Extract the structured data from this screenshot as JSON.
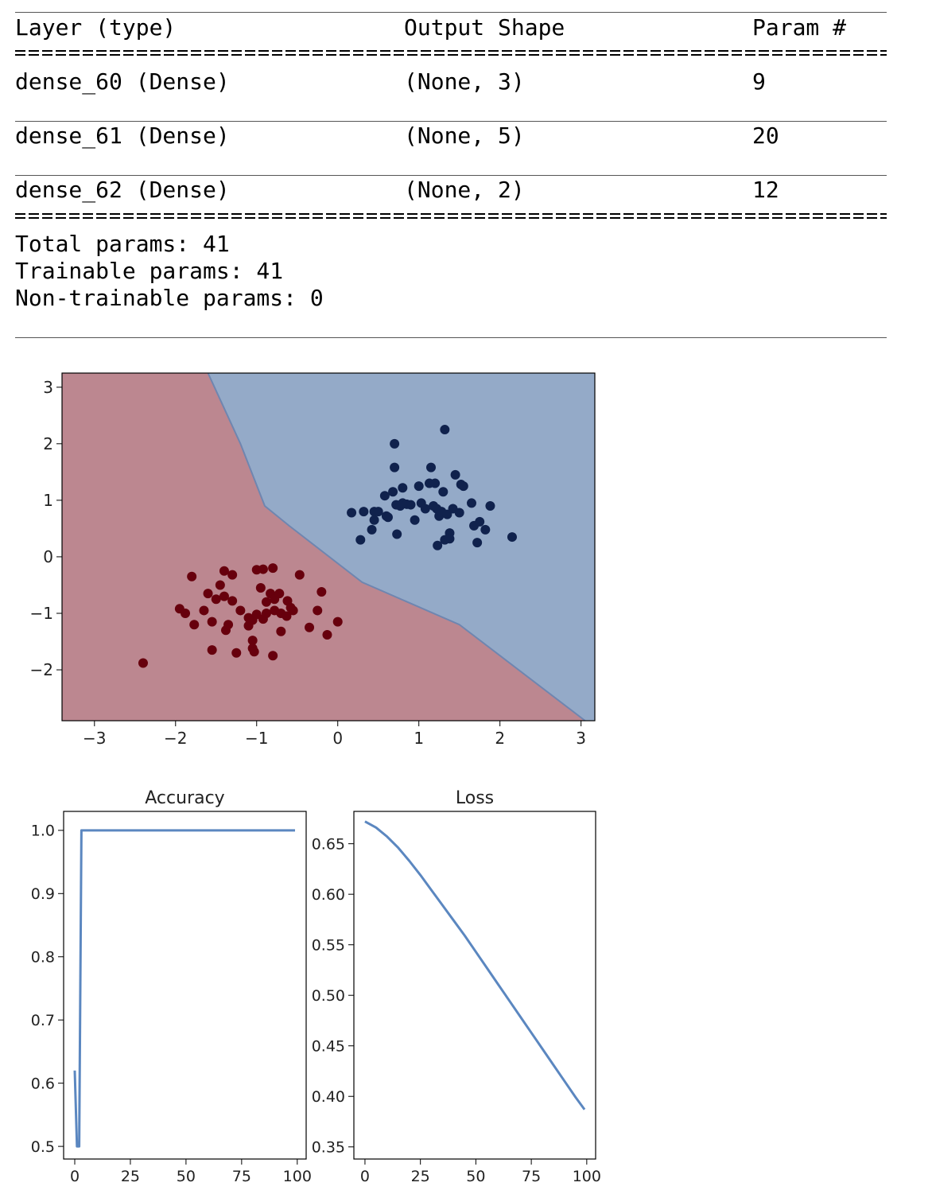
{
  "summary": {
    "headers": [
      "Layer (type)",
      "Output Shape",
      "Param #"
    ],
    "rows": [
      [
        "dense_60 (Dense)",
        "(None, 3)",
        "9"
      ],
      [
        "dense_61 (Dense)",
        "(None, 5)",
        "20"
      ],
      [
        "dense_62 (Dense)",
        "(None, 2)",
        "12"
      ]
    ],
    "total": "Total params: 41",
    "trainable": "Trainable params: 41",
    "non_trainable": "Non-trainable params: 0"
  },
  "colors": {
    "region_red": "#bc8790",
    "region_blue": "#94aac8",
    "points_red": "#67000d",
    "points_blue": "#10224d",
    "line": "#5b87c0"
  },
  "chart_data": [
    {
      "type": "scatter",
      "title": "",
      "xlim": [
        -3.4,
        3.17
      ],
      "ylim": [
        -2.9,
        3.25
      ],
      "xticks": [
        "−3",
        "−2",
        "−1",
        "0",
        "1",
        "2",
        "3"
      ],
      "xtick_values": [
        -3,
        -2,
        -1,
        0,
        1,
        2,
        3
      ],
      "yticks": [
        "3",
        "2",
        "1",
        "0",
        "−1",
        "−2"
      ],
      "ytick_values": [
        3,
        2,
        1,
        0,
        -1,
        -2
      ],
      "decision_boundary": [
        [
          -1.6,
          3.25
        ],
        [
          -1.2,
          2.0
        ],
        [
          -0.9,
          0.9
        ],
        [
          -0.6,
          0.55
        ],
        [
          0.3,
          -0.45
        ],
        [
          1.5,
          -1.2
        ],
        [
          3.05,
          -2.9
        ]
      ],
      "series": [
        {
          "class": 0,
          "points": [
            [
              -2.4,
              -1.88
            ],
            [
              -1.8,
              -0.35
            ],
            [
              -1.95,
              -0.92
            ],
            [
              -1.88,
              -1.0
            ],
            [
              -1.77,
              -1.2
            ],
            [
              -1.6,
              -0.65
            ],
            [
              -1.55,
              -1.15
            ],
            [
              -1.5,
              -0.75
            ],
            [
              -1.45,
              -0.5
            ],
            [
              -1.4,
              -0.7
            ],
            [
              -1.38,
              -1.3
            ],
            [
              -1.35,
              -1.2
            ],
            [
              -1.4,
              -0.25
            ],
            [
              -1.3,
              -0.78
            ],
            [
              -1.3,
              -0.32
            ],
            [
              -1.55,
              -1.65
            ],
            [
              -1.25,
              -1.7
            ],
            [
              -1.1,
              -1.22
            ],
            [
              -1.1,
              -1.08
            ],
            [
              -1.05,
              -1.12
            ],
            [
              -1.0,
              -1.02
            ],
            [
              -1.05,
              -1.48
            ],
            [
              -1.05,
              -1.62
            ],
            [
              -1.03,
              -1.68
            ],
            [
              -1.0,
              -0.23
            ],
            [
              -0.92,
              -0.22
            ],
            [
              -0.95,
              -0.55
            ],
            [
              -0.92,
              -1.1
            ],
            [
              -0.88,
              -0.8
            ],
            [
              -0.83,
              -0.65
            ],
            [
              -0.8,
              -0.2
            ],
            [
              -0.78,
              -0.75
            ],
            [
              -0.78,
              -0.95
            ],
            [
              -0.8,
              -1.75
            ],
            [
              -0.7,
              -1.0
            ],
            [
              -0.72,
              -0.65
            ],
            [
              -0.7,
              -1.32
            ],
            [
              -0.63,
              -1.05
            ],
            [
              -0.62,
              -0.78
            ],
            [
              -0.55,
              -0.95
            ],
            [
              -0.58,
              -0.9
            ],
            [
              -0.47,
              -0.32
            ],
            [
              -0.35,
              -1.25
            ],
            [
              -0.25,
              -0.95
            ],
            [
              -0.2,
              -0.62
            ],
            [
              -0.13,
              -1.38
            ],
            [
              0.0,
              -1.15
            ],
            [
              -0.88,
              -1.0
            ],
            [
              -1.2,
              -0.95
            ],
            [
              -1.65,
              -0.95
            ]
          ]
        },
        {
          "class": 1,
          "points": [
            [
              0.17,
              0.78
            ],
            [
              0.28,
              0.3
            ],
            [
              0.32,
              0.8
            ],
            [
              0.42,
              0.48
            ],
            [
              0.45,
              0.65
            ],
            [
              0.45,
              0.8
            ],
            [
              0.5,
              0.8
            ],
            [
              0.58,
              1.08
            ],
            [
              0.6,
              0.72
            ],
            [
              0.62,
              0.7
            ],
            [
              0.68,
              1.15
            ],
            [
              0.7,
              1.58
            ],
            [
              0.7,
              2.0
            ],
            [
              0.72,
              0.92
            ],
            [
              0.73,
              0.4
            ],
            [
              0.77,
              0.9
            ],
            [
              0.8,
              0.95
            ],
            [
              0.8,
              1.22
            ],
            [
              0.85,
              0.93
            ],
            [
              0.9,
              0.92
            ],
            [
              0.95,
              0.65
            ],
            [
              1.0,
              1.25
            ],
            [
              1.03,
              0.95
            ],
            [
              1.08,
              0.85
            ],
            [
              1.13,
              1.3
            ],
            [
              1.15,
              1.58
            ],
            [
              1.18,
              0.9
            ],
            [
              1.2,
              1.3
            ],
            [
              1.22,
              0.85
            ],
            [
              1.23,
              0.2
            ],
            [
              1.25,
              0.72
            ],
            [
              1.28,
              0.8
            ],
            [
              1.3,
              1.15
            ],
            [
              1.32,
              0.3
            ],
            [
              1.32,
              2.25
            ],
            [
              1.35,
              0.75
            ],
            [
              1.38,
              0.42
            ],
            [
              1.38,
              0.32
            ],
            [
              1.42,
              0.85
            ],
            [
              1.45,
              1.45
            ],
            [
              1.5,
              0.78
            ],
            [
              1.52,
              1.28
            ],
            [
              1.55,
              1.25
            ],
            [
              1.65,
              0.95
            ],
            [
              1.68,
              0.55
            ],
            [
              1.72,
              0.25
            ],
            [
              1.75,
              0.62
            ],
            [
              1.82,
              0.48
            ],
            [
              1.88,
              0.9
            ],
            [
              2.15,
              0.35
            ]
          ]
        }
      ]
    },
    {
      "type": "line",
      "title": "Accuracy",
      "xlim": [
        -5,
        104
      ],
      "ylim": [
        0.48,
        1.03
      ],
      "xticks": [
        "0",
        "25",
        "50",
        "75",
        "100"
      ],
      "xtick_values": [
        0,
        25,
        50,
        75,
        100
      ],
      "yticks": [
        "1.0",
        "0.9",
        "0.8",
        "0.7",
        "0.6",
        "0.5"
      ],
      "ytick_values": [
        1.0,
        0.9,
        0.8,
        0.7,
        0.6,
        0.5
      ],
      "x": [
        0,
        1,
        2,
        3,
        4,
        99
      ],
      "y": [
        0.62,
        0.5,
        0.5,
        1.0,
        1.0,
        1.0
      ]
    },
    {
      "type": "line",
      "title": "Loss",
      "xlim": [
        -5,
        104
      ],
      "ylim": [
        0.338,
        0.682
      ],
      "xticks": [
        "0",
        "25",
        "50",
        "75",
        "100"
      ],
      "xtick_values": [
        0,
        25,
        50,
        75,
        100
      ],
      "yticks": [
        "0.65",
        "0.60",
        "0.55",
        "0.50",
        "0.45",
        "0.40",
        "0.35"
      ],
      "ytick_values": [
        0.65,
        0.6,
        0.55,
        0.5,
        0.45,
        0.4,
        0.35
      ],
      "x": [
        0,
        5,
        10,
        15,
        20,
        25,
        30,
        35,
        40,
        45,
        50,
        55,
        60,
        65,
        70,
        75,
        80,
        85,
        90,
        95,
        99
      ],
      "y": [
        0.672,
        0.666,
        0.657,
        0.646,
        0.633,
        0.619,
        0.604,
        0.589,
        0.574,
        0.559,
        0.543,
        0.527,
        0.511,
        0.495,
        0.479,
        0.463,
        0.447,
        0.431,
        0.415,
        0.399,
        0.387
      ]
    }
  ]
}
